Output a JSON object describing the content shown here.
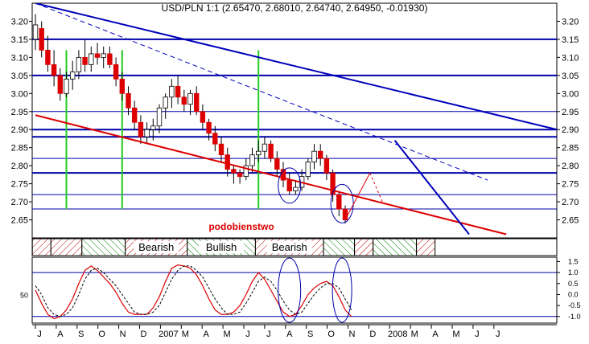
{
  "chart_data": {
    "type": "candlestick",
    "title": "USD/PLN 1:1 (2.65470, 2.68010, 2.64740, 2.64950, -0.01930)",
    "annotation": "podobienstwo",
    "ylim": [
      2.6,
      3.25
    ],
    "y_ticks": [
      "3.20",
      "3.15",
      "3.10",
      "3.05",
      "3.00",
      "2.95",
      "2.90",
      "2.85",
      "2.80",
      "2.75",
      "2.70",
      "2.65"
    ],
    "x_ticks": [
      "J",
      "A",
      "S",
      "O",
      "N",
      "D",
      "2007",
      "M",
      "A",
      "M",
      "J",
      "J",
      "A",
      "S",
      "O",
      "N",
      "D",
      "2008",
      "M",
      "A",
      "M",
      "J",
      "J"
    ],
    "candles": [
      [
        3.15,
        3.22,
        3.12,
        3.19
      ],
      [
        3.18,
        3.2,
        3.1,
        3.12
      ],
      [
        3.12,
        3.16,
        3.06,
        3.08
      ],
      [
        3.08,
        3.12,
        3.02,
        3.05
      ],
      [
        3.05,
        3.07,
        2.98,
        3.0
      ],
      [
        3.0,
        3.06,
        2.99,
        3.04
      ],
      [
        3.04,
        3.09,
        3.01,
        3.06
      ],
      [
        3.06,
        3.12,
        3.04,
        3.1
      ],
      [
        3.1,
        3.15,
        3.06,
        3.08
      ],
      [
        3.08,
        3.13,
        3.06,
        3.11
      ],
      [
        3.11,
        3.14,
        3.08,
        3.1
      ],
      [
        3.1,
        3.13,
        3.07,
        3.11
      ],
      [
        3.11,
        3.13,
        3.07,
        3.08
      ],
      [
        3.08,
        3.1,
        3.02,
        3.04
      ],
      [
        3.04,
        3.06,
        2.98,
        3.0
      ],
      [
        3.0,
        3.02,
        2.94,
        2.96
      ],
      [
        2.96,
        2.98,
        2.9,
        2.92
      ],
      [
        2.92,
        2.94,
        2.86,
        2.88
      ],
      [
        2.88,
        2.92,
        2.86,
        2.9
      ],
      [
        2.9,
        2.93,
        2.87,
        2.91
      ],
      [
        2.91,
        2.97,
        2.89,
        2.96
      ],
      [
        2.96,
        3.0,
        2.93,
        2.99
      ],
      [
        2.99,
        3.04,
        2.96,
        3.02
      ],
      [
        3.02,
        3.05,
        2.97,
        2.99
      ],
      [
        2.99,
        3.01,
        2.95,
        2.97
      ],
      [
        2.97,
        3.01,
        2.94,
        3.0
      ],
      [
        3.0,
        3.02,
        2.94,
        2.95
      ],
      [
        2.95,
        2.97,
        2.9,
        2.92
      ],
      [
        2.92,
        2.93,
        2.87,
        2.89
      ],
      [
        2.89,
        2.91,
        2.84,
        2.86
      ],
      [
        2.86,
        2.88,
        2.81,
        2.83
      ],
      [
        2.83,
        2.85,
        2.77,
        2.79
      ],
      [
        2.79,
        2.8,
        2.75,
        2.78
      ],
      [
        2.78,
        2.79,
        2.75,
        2.77
      ],
      [
        2.77,
        2.82,
        2.76,
        2.8
      ],
      [
        2.8,
        2.85,
        2.78,
        2.83
      ],
      [
        2.83,
        2.87,
        2.81,
        2.84
      ],
      [
        2.84,
        2.88,
        2.82,
        2.86
      ],
      [
        2.86,
        2.87,
        2.81,
        2.82
      ],
      [
        2.82,
        2.84,
        2.77,
        2.79
      ],
      [
        2.79,
        2.81,
        2.74,
        2.76
      ],
      [
        2.76,
        2.78,
        2.72,
        2.73
      ],
      [
        2.73,
        2.76,
        2.72,
        2.74
      ],
      [
        2.74,
        2.79,
        2.73,
        2.77
      ],
      [
        2.77,
        2.82,
        2.76,
        2.81
      ],
      [
        2.81,
        2.86,
        2.79,
        2.84
      ],
      [
        2.84,
        2.86,
        2.8,
        2.82
      ],
      [
        2.82,
        2.83,
        2.76,
        2.78
      ],
      [
        2.78,
        2.79,
        2.7,
        2.72
      ],
      [
        2.72,
        2.73,
        2.66,
        2.68
      ],
      [
        2.68,
        2.69,
        2.64,
        2.65
      ]
    ],
    "trendlines": [
      {
        "color": "#0000bb",
        "style": "solid",
        "from": [
          0,
          3.25
        ],
        "to": [
          89,
          2.88
        ]
      },
      {
        "color": "#0000bb",
        "style": "dashed",
        "from": [
          0,
          3.25
        ],
        "to": [
          73,
          2.76
        ]
      },
      {
        "color": "#dd0000",
        "style": "solid",
        "from": [
          0,
          2.94
        ],
        "to": [
          76,
          2.61
        ]
      },
      {
        "color": "#0000bb",
        "style": "solid",
        "from": [
          58,
          2.87
        ],
        "to": [
          70,
          2.61
        ]
      }
    ],
    "horizontal_levels": [
      3.15,
      3.05,
      2.95,
      2.9,
      2.88,
      2.82,
      2.78,
      2.72,
      2.68
    ],
    "vertical_markers": [
      5,
      14,
      36
    ],
    "regimes": [
      {
        "label": "",
        "type": "hatch-red",
        "from": 0,
        "to": 3
      },
      {
        "label": "",
        "type": "hatch-red",
        "from": 3,
        "to": 8
      },
      {
        "label": "",
        "type": "hatch-green",
        "from": 8,
        "to": 15
      },
      {
        "label": "Bearish",
        "type": "hatch-red",
        "from": 15,
        "to": 25
      },
      {
        "label": "Bullish",
        "type": "hatch-green",
        "from": 25,
        "to": 36
      },
      {
        "label": "Bearish",
        "type": "hatch-red",
        "from": 36,
        "to": 47
      },
      {
        "label": "",
        "type": "hatch-green",
        "from": 47,
        "to": 52
      },
      {
        "label": "",
        "type": "hatch-red",
        "from": 52,
        "to": 55
      },
      {
        "label": "",
        "type": "hatch-green",
        "from": 55,
        "to": 62
      },
      {
        "label": "",
        "type": "hatch-red",
        "from": 62,
        "to": 65
      }
    ],
    "oscillator": {
      "ylim": [
        -1.3,
        1.7
      ],
      "right_ticks": [
        "1.5",
        "1.0",
        "0.5",
        "0.0",
        "-0.5",
        "-1.0"
      ],
      "left_tick": "50",
      "levels": [
        1.0,
        -1.0
      ],
      "k": [
        0.2,
        -0.4,
        -0.9,
        -1.1,
        -1.0,
        -0.7,
        -0.2,
        0.5,
        1.1,
        1.3,
        1.1,
        0.8,
        0.5,
        0.1,
        -0.4,
        -0.8,
        -0.9,
        -0.9,
        -0.9,
        -0.6,
        -0.1,
        0.6,
        1.2,
        1.35,
        1.3,
        1.2,
        0.9,
        0.4,
        -0.2,
        -0.7,
        -0.9,
        -0.9,
        -0.8,
        -0.5,
        0.0,
        0.6,
        1.0,
        0.7,
        0.2,
        -0.3,
        -0.8,
        -1.0,
        -0.9,
        -0.5,
        0.0,
        0.3,
        0.5,
        0.6,
        0.4,
        -0.1,
        -0.7,
        -1.0
      ],
      "d": [
        0.4,
        0.0,
        -0.6,
        -0.9,
        -1.0,
        -0.9,
        -0.6,
        0.0,
        0.7,
        1.1,
        1.2,
        1.0,
        0.7,
        0.4,
        0.0,
        -0.4,
        -0.8,
        -0.9,
        -0.9,
        -0.8,
        -0.5,
        0.1,
        0.7,
        1.1,
        1.3,
        1.3,
        1.1,
        0.8,
        0.3,
        -0.2,
        -0.6,
        -0.9,
        -0.9,
        -0.8,
        -0.4,
        0.1,
        0.6,
        0.8,
        0.6,
        0.2,
        -0.3,
        -0.7,
        -0.9,
        -0.8,
        -0.4,
        0.0,
        0.3,
        0.5,
        0.5,
        0.3,
        -0.2,
        -0.7
      ]
    },
    "grid": false
  }
}
